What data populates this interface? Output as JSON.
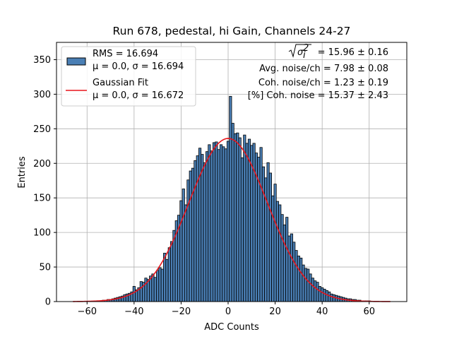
{
  "chart_data": {
    "type": "bar",
    "title": "Run 678, pedestal, hi Gain, Channels 24-27",
    "xlabel": "ADC Counts",
    "ylabel": "Entries",
    "xlim": [
      -73,
      76
    ],
    "ylim": [
      0,
      375
    ],
    "xticks": [
      -60,
      -40,
      -20,
      0,
      20,
      40,
      60
    ],
    "yticks": [
      0,
      50,
      100,
      150,
      200,
      250,
      300,
      350
    ],
    "grid": true,
    "legend_position": "top-left",
    "bin_width": 1,
    "histogram": {
      "name": "RMS = 16.694",
      "stats_label": "μ = 0.0, σ = 16.694",
      "color": "#4a7fb5",
      "edge_color": "#000000",
      "bin_centers": [
        -66,
        -65,
        -64,
        -63,
        -62,
        -61,
        -60,
        -59,
        -58,
        -57,
        -56,
        -55,
        -54,
        -53,
        -52,
        -51,
        -50,
        -49,
        -48,
        -47,
        -46,
        -45,
        -44,
        -43,
        -42,
        -41,
        -40,
        -39,
        -38,
        -37,
        -36,
        -35,
        -34,
        -33,
        -32,
        -31,
        -30,
        -29,
        -28,
        -27,
        -26,
        -25,
        -24,
        -23,
        -22,
        -21,
        -20,
        -19,
        -18,
        -17,
        -16,
        -15,
        -14,
        -13,
        -12,
        -11,
        -10,
        -9,
        -8,
        -7,
        -6,
        -5,
        -4,
        -3,
        -2,
        -1,
        0,
        1,
        2,
        3,
        4,
        5,
        6,
        7,
        8,
        9,
        10,
        11,
        12,
        13,
        14,
        15,
        16,
        17,
        18,
        19,
        20,
        21,
        22,
        23,
        24,
        25,
        26,
        27,
        28,
        29,
        30,
        31,
        32,
        33,
        34,
        35,
        36,
        37,
        38,
        39,
        40,
        41,
        42,
        43,
        44,
        45,
        46,
        47,
        48,
        49,
        50,
        51,
        52,
        53,
        54,
        55,
        56,
        57,
        58,
        59,
        60,
        61,
        62,
        63,
        64,
        65,
        66,
        67,
        68
      ],
      "values": [
        0,
        0,
        0,
        0,
        0,
        0,
        0,
        0,
        0,
        0,
        1,
        1,
        1,
        2,
        2,
        3,
        3,
        4,
        5,
        6,
        7,
        8,
        10,
        11,
        12,
        14,
        22,
        17,
        20,
        29,
        28,
        34,
        32,
        37,
        40,
        35,
        45,
        49,
        47,
        70,
        61,
        78,
        87,
        103,
        117,
        125,
        146,
        163,
        140,
        176,
        189,
        193,
        204,
        211,
        222,
        213,
        201,
        217,
        227,
        218,
        230,
        231,
        220,
        227,
        224,
        221,
        232,
        297,
        258,
        243,
        244,
        237,
        208,
        241,
        229,
        235,
        226,
        229,
        215,
        209,
        223,
        195,
        179,
        201,
        186,
        153,
        170,
        145,
        140,
        126,
        111,
        122,
        95,
        98,
        86,
        74,
        66,
        63,
        53,
        48,
        47,
        40,
        34,
        30,
        28,
        22,
        20,
        18,
        16,
        14,
        11,
        10,
        9,
        8,
        7,
        6,
        5,
        4,
        4,
        3,
        3,
        2,
        2,
        1,
        1,
        1,
        1,
        0,
        0,
        0,
        0,
        0,
        0,
        0,
        0
      ]
    },
    "fit": {
      "name": "Gaussian Fit",
      "stats_label": "μ = 0.0, σ = 16.672",
      "color": "#e8151b",
      "mu": 0.0,
      "sigma": 16.672,
      "amplitude": 236,
      "x_range": [
        -66,
        69
      ]
    },
    "annotations": {
      "sigma_value": " = 15.96 ± 0.16",
      "avg_noise": "Avg. noise/ch = 7.98 ± 0.08",
      "coh_noise": "Coh. noise/ch = 1.23 ± 0.19",
      "pct_coh_noise": "[%] Coh. noise = 15.37 ± 2.43"
    }
  }
}
